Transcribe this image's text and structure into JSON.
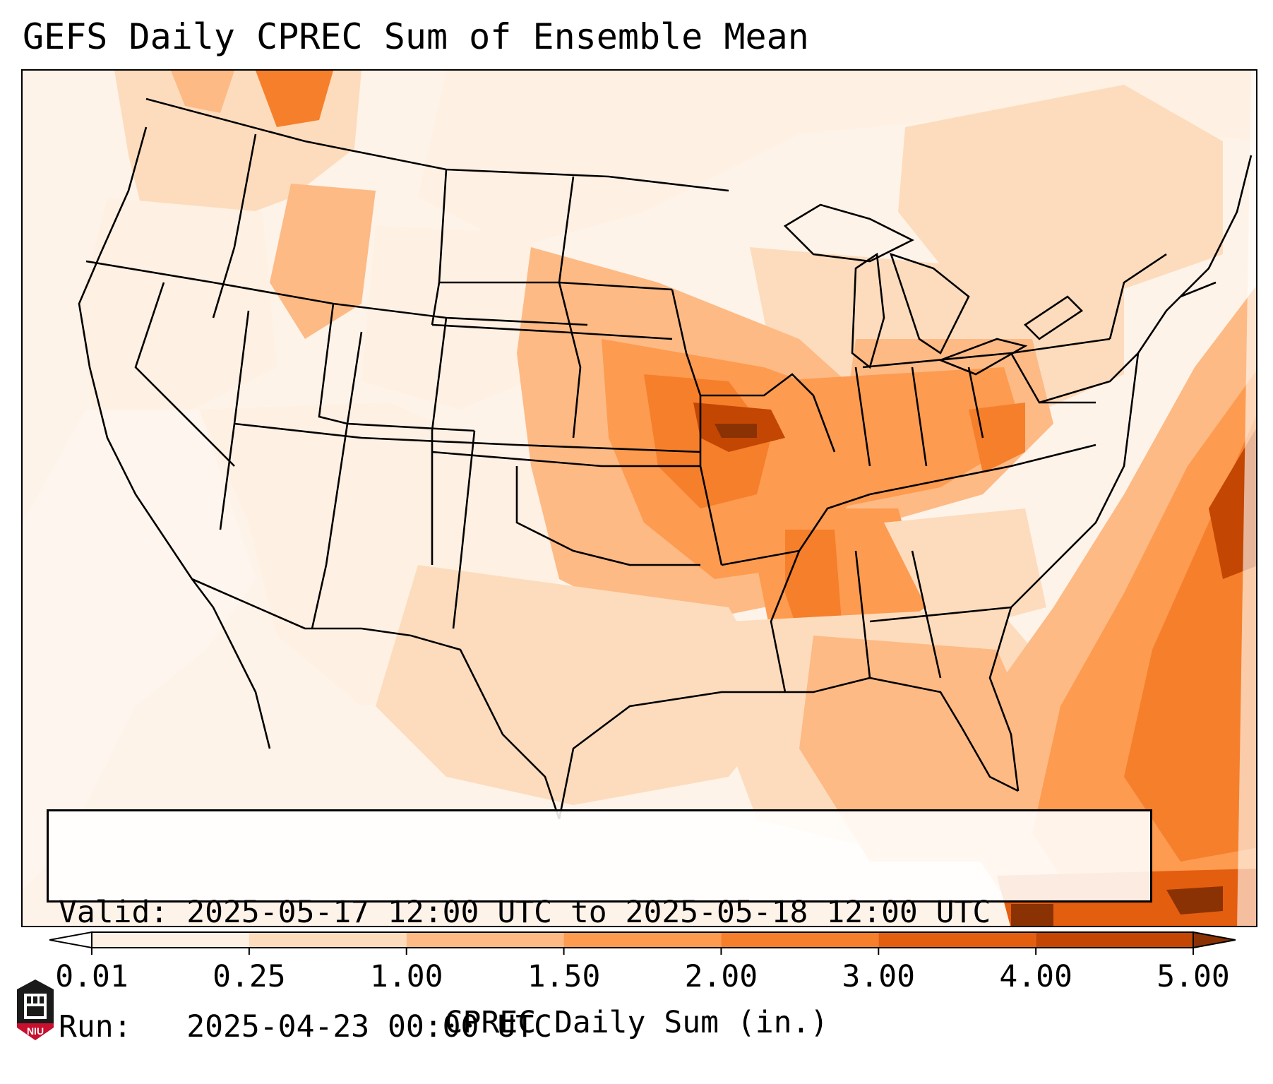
{
  "title": "GEFS Daily CPREC Sum of Ensemble Mean",
  "info": {
    "valid_label": "Valid:",
    "valid_value": "2025-05-17 12:00 UTC to 2025-05-18 12:00 UTC",
    "run_label": "Run:",
    "run_value": "2025-04-23 00:00 UTC"
  },
  "colorbar": {
    "label": "CPREC Daily Sum (in.)",
    "ticks": [
      "0.01",
      "0.25",
      "1.00",
      "1.50",
      "2.00",
      "3.00",
      "4.00",
      "5.00"
    ],
    "colors": [
      "#fef0e2",
      "#fddcbd",
      "#fdba85",
      "#fd9b50",
      "#f67f2b",
      "#e45e0f",
      "#c34603",
      "#8a3204"
    ],
    "extend": "both"
  },
  "map": {
    "region": "CONUS",
    "field": "CPREC daily sum (ensemble mean)",
    "max_area": "Missouri / Iowa border; Atlantic southeast of Carolinas"
  },
  "logo": {
    "text": "NIU",
    "icon": "university-seal-icon"
  }
}
